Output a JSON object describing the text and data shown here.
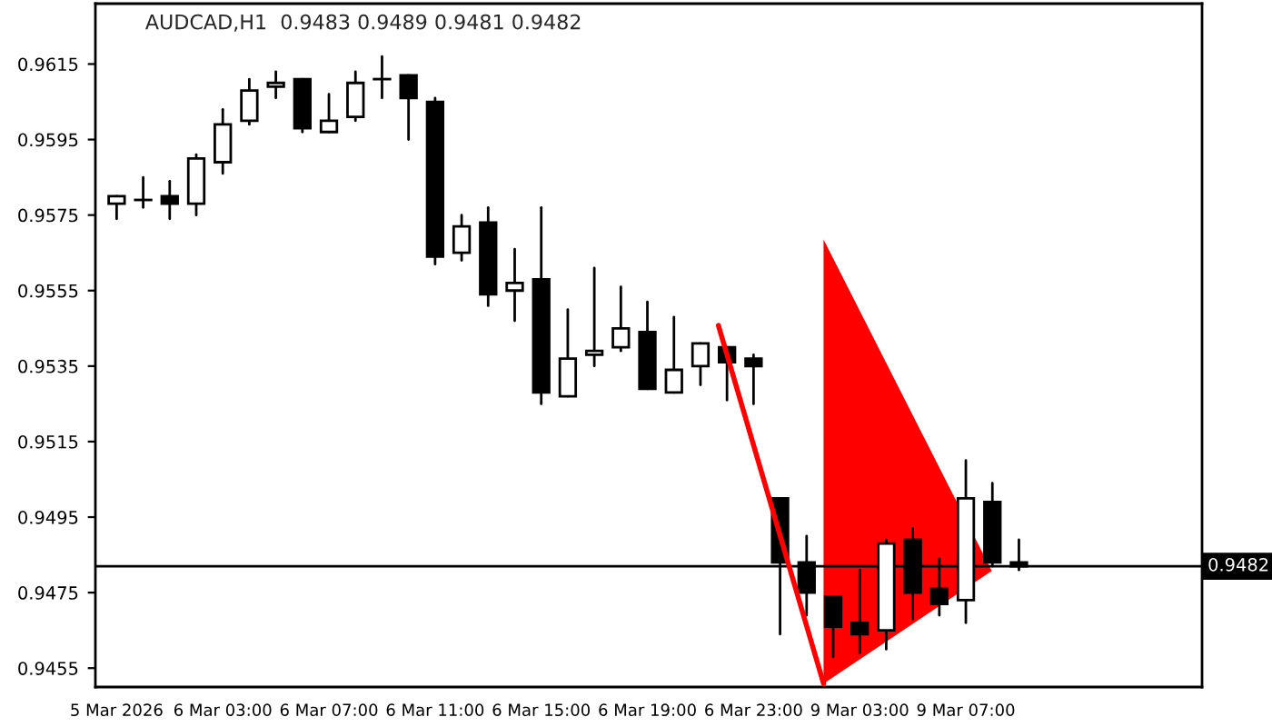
{
  "chart_data": {
    "type": "candlestick",
    "title": "AUDCAD,H1  0.9483 0.9489 0.9481 0.9482",
    "categories": [
      "5 Mar 2026",
      null,
      null,
      null,
      "6 Mar 03:00",
      null,
      null,
      null,
      "6 Mar 07:00",
      null,
      null,
      null,
      "6 Mar 11:00",
      null,
      null,
      null,
      "6 Mar 15:00",
      null,
      null,
      null,
      "6 Mar 19:00",
      null,
      null,
      null,
      "6 Mar 23:00",
      null,
      null,
      null,
      "9 Mar 03:00",
      null,
      null,
      null,
      "9 Mar 07:00",
      null,
      null
    ],
    "ohlc": [
      [
        0.9578,
        0.958,
        0.9574,
        0.958
      ],
      [
        0.9579,
        0.9585,
        0.9577,
        0.9579
      ],
      [
        0.958,
        0.9584,
        0.9574,
        0.9578
      ],
      [
        0.9578,
        0.9591,
        0.9575,
        0.959
      ],
      [
        0.9589,
        0.9603,
        0.9586,
        0.9599
      ],
      [
        0.96,
        0.9611,
        0.9599,
        0.9608
      ],
      [
        0.9609,
        0.9613,
        0.9606,
        0.961
      ],
      [
        0.9611,
        0.9611,
        0.9597,
        0.9598
      ],
      [
        0.9597,
        0.9607,
        0.9597,
        0.96
      ],
      [
        0.9601,
        0.9613,
        0.96,
        0.961
      ],
      [
        0.9611,
        0.9617,
        0.9606,
        0.9611
      ],
      [
        0.9612,
        0.9612,
        0.9595,
        0.9606
      ],
      [
        0.9605,
        0.9606,
        0.9562,
        0.9564
      ],
      [
        0.9565,
        0.9575,
        0.9563,
        0.9572
      ],
      [
        0.9573,
        0.9577,
        0.9551,
        0.9554
      ],
      [
        0.9555,
        0.9566,
        0.9547,
        0.9557
      ],
      [
        0.9558,
        0.9577,
        0.9525,
        0.9528
      ],
      [
        0.9527,
        0.955,
        0.9527,
        0.9537
      ],
      [
        0.9538,
        0.9561,
        0.9535,
        0.9539
      ],
      [
        0.954,
        0.9556,
        0.9539,
        0.9545
      ],
      [
        0.9544,
        0.9552,
        0.9529,
        0.9529
      ],
      [
        0.9528,
        0.9548,
        0.9528,
        0.9534
      ],
      [
        0.9535,
        0.9541,
        0.953,
        0.9541
      ],
      [
        0.954,
        0.954,
        0.9526,
        0.9536
      ],
      [
        0.9537,
        0.9538,
        0.9525,
        0.9535
      ],
      [
        0.95,
        0.95,
        0.9464,
        0.9483
      ],
      [
        0.9483,
        0.949,
        0.9469,
        0.9475
      ],
      [
        0.9474,
        0.9474,
        0.9458,
        0.9466
      ],
      [
        0.9467,
        0.9481,
        0.9459,
        0.9464
      ],
      [
        0.9465,
        0.9489,
        0.946,
        0.9488
      ],
      [
        0.9489,
        0.9492,
        0.9468,
        0.9475
      ],
      [
        0.9476,
        0.9484,
        0.9469,
        0.9472
      ],
      [
        0.9473,
        0.951,
        0.9467,
        0.95
      ],
      [
        0.9499,
        0.9504,
        0.9482,
        0.9483
      ],
      [
        0.9483,
        0.9489,
        0.9481,
        0.9482
      ]
    ],
    "ylim": [
      0.945,
      0.9631
    ],
    "yticks": [
      {
        "value": 0.9455,
        "label": "0.9455"
      },
      {
        "value": 0.9475,
        "label": "0.9475"
      },
      {
        "value": 0.9495,
        "label": "0.9495"
      },
      {
        "value": 0.9515,
        "label": "0.9515"
      },
      {
        "value": 0.9535,
        "label": "0.9535"
      },
      {
        "value": 0.9555,
        "label": "0.9555"
      },
      {
        "value": 0.9575,
        "label": "0.9575"
      },
      {
        "value": 0.9595,
        "label": "0.9595"
      },
      {
        "value": 0.9615,
        "label": "0.9615"
      }
    ],
    "ref_lines": [
      {
        "axis": "y",
        "value": 0.9482,
        "label": "0.9482",
        "color": "#000000"
      }
    ],
    "grid": false,
    "legend": false
  }
}
